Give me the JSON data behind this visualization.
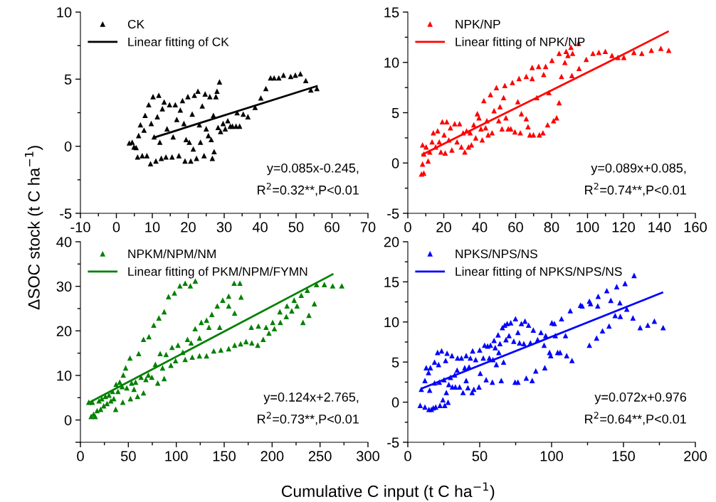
{
  "chart_data": [
    {
      "type": "scatter",
      "ylabel": "ΔSOC stock (t C ha$^{−1}$)",
      "xlim": [
        -10,
        70
      ],
      "xticks": [
        -10,
        0,
        10,
        20,
        30,
        40,
        50,
        60,
        70
      ],
      "ylim": [
        -5,
        10
      ],
      "yticks": [
        -5,
        0,
        5,
        10
      ],
      "legend": "top left",
      "grid": false,
      "annotations": [
        "y=0.085x-0.245,",
        "R$^{2}$=0.32**,P<0.01"
      ],
      "series": [
        {
          "name": "CK",
          "color": "#000000",
          "marker": "triangle",
          "x": [
            3.6,
            4.4,
            4.9,
            5.5,
            5.9,
            6.2,
            6.7,
            7.2,
            7.7,
            8.0,
            8.5,
            9.0,
            9.5,
            9.7,
            10.2,
            10.5,
            11.0,
            11.4,
            11.8,
            12.1,
            12.5,
            12.8,
            13.3,
            13.8,
            14.1,
            14.8,
            15.5,
            15.8,
            16.4,
            16.8,
            17.4,
            17.8,
            18.4,
            18.8,
            19.1,
            19.4,
            19.9,
            20.3,
            20.7,
            21.1,
            21.4,
            21.7,
            22.3,
            22.7,
            23.1,
            23.4,
            23.9,
            24.4,
            24.7,
            25.0,
            25.6,
            26.0,
            26.4,
            26.7,
            27.0,
            27.2,
            27.7,
            28.0,
            28.3,
            28.7,
            29.0,
            29.7,
            30.3,
            31.0,
            31.7,
            32.3,
            33.3,
            34.3,
            33.6,
            35.3,
            36.6,
            38.6,
            40.2,
            41.6,
            42.9,
            43.9,
            45.2,
            46.5,
            48.5,
            49.8,
            51.2,
            52.7,
            54.1,
            55.8
          ],
          "values": [
            0.25,
            0.3,
            -0.05,
            -0.1,
            -0.8,
            0.8,
            1.6,
            -0.7,
            1.2,
            2.3,
            -0.7,
            3.1,
            -1.3,
            1.7,
            3.7,
            0.7,
            -1.1,
            2.2,
            3.8,
            0.3,
            -0.9,
            2.8,
            3.3,
            -0.8,
            1.3,
            3.1,
            -0.8,
            0.7,
            3.1,
            2.0,
            -0.7,
            2.7,
            3.4,
            1.7,
            -1.1,
            0.5,
            3.7,
            0.3,
            -1.1,
            2.4,
            -0.2,
            3.8,
            -0.9,
            4.1,
            1.6,
            0.3,
            3.0,
            -0.7,
            3.9,
            1.3,
            0.8,
            3.7,
            0.5,
            -0.9,
            2.3,
            -0.4,
            3.7,
            4.1,
            1.4,
            4.8,
            1.1,
            1.7,
            1.3,
            1.9,
            1.5,
            1.5,
            1.5,
            1.5,
            2.5,
            2.4,
            2.2,
            2.9,
            3.6,
            4.3,
            5.1,
            5.1,
            5.1,
            5.3,
            5.2,
            5.3,
            5.4,
            4.9,
            4.2,
            4.3
          ]
        },
        {
          "name": "Linear fitting of CK",
          "type": "line",
          "color": "#000000",
          "x": [
            10.5,
            56
          ],
          "values": [
            0.65,
            4.5
          ]
        }
      ]
    },
    {
      "type": "scatter",
      "xlim": [
        0,
        160
      ],
      "xticks": [
        0,
        20,
        40,
        60,
        80,
        100,
        120,
        140,
        160
      ],
      "ylim": [
        -5,
        15
      ],
      "yticks": [
        -5,
        0,
        5,
        10,
        15
      ],
      "legend": "top left",
      "grid": false,
      "annotations": [
        "y=0.089x+0.085,",
        "R$^{2}$=0.74**,P<0.01"
      ],
      "series": [
        {
          "name": "NPK/NP",
          "color": "#ff0000",
          "marker": "triangle",
          "x": [
            7.6,
            8.9,
            8.2,
            8.2,
            8.9,
            10.2,
            11.3,
            12.2,
            13.5,
            14.2,
            15.5,
            16.6,
            17.5,
            18.4,
            19.2,
            20.2,
            20.8,
            21.7,
            22.8,
            23.7,
            24.5,
            26.1,
            27.4,
            28.8,
            29.8,
            30.8,
            31.7,
            32.7,
            33.8,
            34.7,
            35.4,
            36.7,
            37.8,
            38.7,
            39.6,
            40.7,
            41.4,
            42.3,
            43.3,
            44.0,
            44.7,
            46.0,
            46.9,
            48.0,
            49.3,
            50.6,
            51.3,
            52.4,
            53.3,
            54.0,
            54.6,
            55.9,
            57.3,
            58.2,
            59.6,
            61.2,
            61.9,
            62.6,
            63.2,
            65.9,
            65.9,
            66.9,
            67.9,
            69.2,
            69.2,
            69.9,
            71.8,
            72.8,
            73.2,
            75.2,
            75.6,
            76.7,
            77.8,
            78.5,
            80.2,
            81.1,
            82.8,
            84.2,
            84.2,
            85.5,
            87.4,
            88.1,
            89.1,
            90.8,
            91.3,
            91.7,
            95.3,
            95.0,
            99.3,
            103.0,
            106.3,
            109.9,
            113.6,
            116.9,
            120.2,
            125.8,
            130.2,
            135.5,
            140.8,
            145.2
          ],
          "values": [
            -1.1,
            -1.0,
            -0.1,
            1.8,
            0.9,
            1.6,
            0.2,
            1.1,
            2.1,
            3.0,
            1.6,
            3.2,
            2.1,
            1.1,
            4.1,
            2.8,
            1.0,
            4.1,
            2.3,
            3.5,
            1.3,
            3.9,
            2.1,
            3.9,
            1.6,
            3.0,
            1.1,
            3.2,
            1.6,
            3.0,
            1.8,
            3.8,
            2.5,
            4.9,
            4.5,
            3.4,
            2.3,
            6.2,
            3.5,
            4.2,
            2.8,
            6.8,
            3.0,
            5.2,
            7.5,
            4.2,
            5.6,
            3.4,
            6.5,
            7.7,
            4.5,
            3.4,
            3.4,
            8.0,
            3.1,
            6.1,
            8.4,
            3.0,
            4.9,
            8.6,
            4.4,
            3.6,
            2.8,
            8.4,
            9.5,
            2.8,
            6.5,
            9.6,
            2.8,
            3.0,
            8.8,
            9.6,
            3.8,
            7.0,
            10.2,
            4.2,
            4.5,
            10.9,
            6.0,
            8.6,
            10.0,
            11.1,
            10.7,
            11.5,
            8.7,
            10.9,
            9.4,
            11.9,
            10.3,
            10.9,
            11.0,
            11.1,
            10.7,
            10.5,
            10.5,
            11.0,
            10.9,
            11.2,
            11.4,
            11.2
          ]
        },
        {
          "name": "Linear fitting of NPK/NP",
          "type": "line",
          "color": "#ff0000",
          "x": [
            7.6,
            40,
            76.4,
            110,
            145.2
          ],
          "values": [
            0.8,
            3.7,
            6.9,
            9.9,
            13.1
          ]
        }
      ]
    },
    {
      "type": "scatter",
      "xlabel": "Cumulative C input (t C ha$^{−1}$)",
      "xlim": [
        0,
        300
      ],
      "xticks": [
        0,
        50,
        100,
        150,
        200,
        250,
        300
      ],
      "ylim": [
        -5,
        40
      ],
      "yticks": [
        {
          "value": -5,
          "label": null
        },
        0,
        10,
        20,
        30,
        40
      ],
      "legend": "top left",
      "grid": false,
      "annotations": [
        "y=0.124x+2.765,",
        "R$^{2}$=0.73**,P<0.01"
      ],
      "series": [
        {
          "name": "NPKM/NPM/NM",
          "color": "#008000",
          "marker": "triangle",
          "x": [
            8.7,
            12.4,
            11.2,
            13.7,
            15.4,
            17.4,
            19.4,
            21.1,
            22.3,
            24.3,
            26.1,
            27.8,
            29.8,
            31.8,
            33.5,
            34.8,
            36.8,
            37.2,
            39.2,
            41.0,
            43.5,
            44.7,
            44.2,
            47.2,
            48.4,
            51.7,
            52.2,
            53.4,
            55.9,
            57.6,
            60.8,
            59.6,
            63.3,
            65.8,
            65.8,
            68.3,
            71.5,
            70.8,
            74.5,
            76.5,
            78.2,
            80.7,
            81.9,
            83.2,
            85.7,
            87.4,
            87.4,
            89.4,
            91.9,
            94.4,
            95.6,
            98.1,
            99.3,
            101.8,
            103.8,
            106.8,
            109.3,
            109.3,
            111.7,
            114.7,
            115.5,
            116.7,
            119.9,
            119.7,
            124.2,
            124.2,
            126.1,
            131.6,
            131.6,
            134.1,
            137.1,
            139.1,
            142.8,
            145.3,
            146.5,
            148.5,
            154.7,
            154.7,
            154.7,
            160.9,
            160.9,
            160.4,
            166.4,
            167.1,
            167.6,
            172.8,
            178.3,
            178.8,
            185.0,
            185.7,
            190.7,
            193.7,
            196.7,
            200.6,
            202.4,
            208.1,
            208.6,
            214.8,
            215.5,
            220.5,
            223.0,
            226.0,
            230.4,
            232.2,
            236.7,
            238.4,
            244.1,
            246.3,
            254.5,
            263.2,
            272.7
          ],
          "values": [
            4.0,
            4.0,
            0.8,
            1.3,
            0.8,
            2.1,
            4.3,
            2.4,
            4.8,
            3.2,
            5.3,
            3.7,
            5.6,
            4.3,
            6.4,
            4.8,
            2.4,
            8.0,
            6.4,
            8.5,
            7.5,
            10.1,
            4.0,
            11.7,
            7.2,
            13.9,
            4.8,
            8.3,
            6.9,
            8.5,
            14.9,
            5.3,
            9.6,
            18.1,
            6.1,
            9.1,
            18.7,
            10.1,
            9.6,
            21.3,
            12.5,
            8.3,
            22.9,
            14.9,
            11.7,
            24.3,
            9.3,
            14.7,
            27.7,
            12.3,
            16.3,
            28.5,
            13.3,
            16.8,
            30.1,
            15.2,
            30.7,
            13.6,
            18.1,
            30.1,
            17.3,
            14.1,
            31.2,
            20.5,
            14.4,
            18.4,
            21.9,
            14.4,
            22.4,
            20.8,
            23.7,
            15.5,
            25.6,
            20.8,
            15.7,
            26.9,
            16.0,
            27.8,
            25.6,
            24.0,
            16.8,
            30.7,
            30.7,
            17.1,
            27.6,
            17.6,
            20.8,
            17.3,
            16.8,
            21.1,
            18.1,
            20.8,
            19.5,
            21.9,
            20.5,
            24.3,
            21.9,
            23.2,
            25.6,
            24.5,
            26.9,
            25.6,
            28.0,
            21.9,
            29.1,
            23.5,
            26.1,
            30.4,
            30.4,
            30.1,
            30.1
          ]
        },
        {
          "name": "Linear fitting of PKM/NPM/FYMN",
          "type": "line",
          "color": "#008000",
          "x": [
            10,
            264
          ],
          "values": [
            4.0,
            32.8
          ]
        }
      ]
    },
    {
      "type": "scatter",
      "xlim": [
        0,
        200
      ],
      "xticks": [
        0,
        50,
        100,
        150,
        200
      ],
      "ylim": [
        -5,
        20
      ],
      "yticks": [
        -5,
        0,
        5,
        10,
        15,
        20
      ],
      "legend": "top left",
      "grid": false,
      "annotations": [
        "y=0.072x+0.976",
        "R$^{2}$=0.64**,P<0.01"
      ],
      "series": [
        {
          "name": "NPKS/NPS/NS",
          "color": "#0000ff",
          "marker": "triangle",
          "x": [
            8.6,
            9.4,
            11.9,
            11.9,
            12.8,
            14.4,
            14.7,
            15.7,
            15.2,
            16.4,
            17.7,
            18.6,
            18.6,
            19.4,
            20.7,
            21.4,
            21.9,
            22.4,
            23.5,
            24.4,
            25.2,
            25.7,
            26.3,
            26.8,
            27.3,
            28.0,
            28.5,
            29.7,
            30.7,
            31.0,
            32.6,
            33.1,
            34.6,
            34.3,
            36.0,
            37.3,
            38.4,
            39.6,
            40.6,
            40.6,
            41.8,
            42.6,
            43.5,
            44.7,
            45.1,
            45.9,
            47.2,
            49.5,
            50.0,
            50.4,
            52.5,
            53.4,
            54.5,
            55.5,
            56.7,
            57.5,
            58.8,
            59.2,
            60.0,
            60.8,
            61.6,
            62.8,
            63.3,
            64.1,
            65.0,
            65.8,
            66.6,
            67.4,
            68.3,
            69.1,
            70.4,
            71.6,
            73.7,
            74.9,
            74.6,
            76.6,
            76.6,
            77.7,
            79.0,
            80.7,
            81.5,
            82.4,
            84.0,
            85.3,
            86.5,
            87.3,
            89.0,
            90.3,
            92.6,
            94.8,
            95.3,
            95.9,
            98.6,
            99.4,
            100.2,
            101.9,
            102.6,
            104.2,
            105.9,
            106.9,
            109.7,
            110.5,
            113.0,
            114.2,
            120.1,
            121.3,
            126.3,
            126.3,
            127.1,
            131.3,
            132.1,
            132.4,
            135.4,
            138.4,
            140.0,
            141.2,
            144.2,
            145.3,
            147.5,
            147.8,
            151.1,
            152.3,
            156.6,
            157.4,
            161.6,
            166.9,
            171.5,
            177.6
          ],
          "values": [
            -0.4,
            1.6,
            -0.6,
            2.7,
            4.3,
            3.7,
            -0.9,
            4.3,
            1.5,
            -0.9,
            -0.7,
            5.0,
            2.4,
            -0.6,
            6.2,
            4.7,
            2.5,
            -0.4,
            6.4,
            0.3,
            2.8,
            -0.4,
            5.2,
            1.2,
            6.1,
            0.0,
            2.2,
            3.1,
            5.8,
            1.9,
            3.4,
            1.9,
            5.5,
            4.0,
            1.9,
            5.5,
            1.2,
            4.3,
            2.7,
            5.8,
            1.8,
            4.4,
            5.5,
            1.2,
            6.4,
            1.6,
            5.3,
            1.9,
            6.5,
            3.6,
            5.5,
            7.1,
            2.8,
            7.0,
            5.5,
            7.1,
            2.5,
            5.3,
            7.7,
            6.8,
            4.7,
            8.4,
            6.2,
            7.3,
            2.7,
            9.3,
            5.0,
            9.6,
            7.8,
            9.8,
            8.3,
            9.9,
            7.6,
            10.4,
            2.5,
            2.5,
            8.7,
            7.4,
            9.8,
            7.3,
            10.1,
            3.0,
            9.6,
            7.4,
            2.7,
            9.0,
            3.9,
            7.8,
            8.7,
            7.1,
            4.3,
            8.3,
            6.2,
            5.8,
            9.9,
            9.8,
            8.3,
            6.2,
            6.2,
            10.4,
            8.3,
            5.8,
            11.4,
            5.2,
            12.1,
            12.0,
            7.1,
            12.6,
            12.3,
            8.0,
            12.0,
            13.2,
            8.9,
            13.9,
            9.5,
            12.7,
            10.8,
            14.4,
            12.4,
            10.7,
            14.8,
            11.6,
            10.5,
            15.8,
            9.3,
            9.6,
            10.1,
            9.3
          ]
        },
        {
          "name": "Linear fitting of NPKS/NPS/NS",
          "type": "line",
          "color": "#0000ff",
          "x": [
            9.5,
            177.6
          ],
          "values": [
            1.7,
            13.7
          ]
        }
      ]
    }
  ]
}
